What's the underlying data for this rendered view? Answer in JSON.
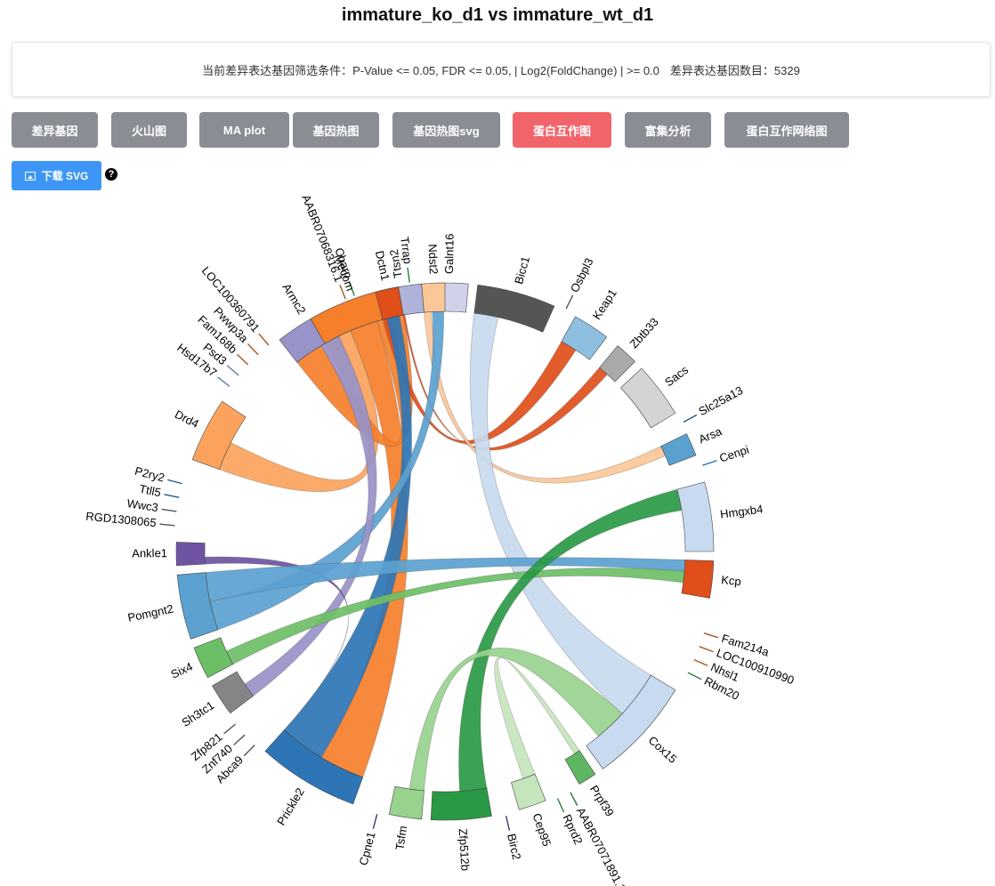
{
  "page_title": "immature_ko_d1 vs immature_wt_d1",
  "filter": {
    "condition": "当前差异表达基因筛选条件：P-Value <= 0.05, FDR <= 0.05, | Log2(FoldChange) | >= 0.0",
    "count_label": "差异表达基因数目：5329"
  },
  "tabs": [
    {
      "label": "差异基因",
      "active": false
    },
    {
      "label": "火山图",
      "active": false
    },
    {
      "label": "MA plot",
      "active": false
    },
    {
      "label": "基因热图",
      "active": false
    },
    {
      "label": "基因热图svg",
      "active": false
    },
    {
      "label": "蛋白互作图",
      "active": true
    },
    {
      "label": "富集分析",
      "active": false
    },
    {
      "label": "蛋白互作网络图",
      "active": false
    }
  ],
  "download_label": "下载 SVG",
  "help_icon": "question-circle-icon",
  "chord": {
    "genes": [
      {
        "name": "Ttsn2",
        "start": -14,
        "end": -5,
        "color": "#b0b3d9"
      },
      {
        "name": "Galnt16",
        "start": -3,
        "end": 5,
        "color": "#d1d2ea"
      },
      {
        "name": "Bicc1",
        "start": 7,
        "end": 24,
        "color": "#555555"
      },
      {
        "name": "Osbpl3",
        "start": 26,
        "end": 27,
        "color": "#555555",
        "tick": true
      },
      {
        "name": "Keap1",
        "start": 29,
        "end": 37,
        "color": "#8fbfe0"
      },
      {
        "name": "Zbtb33",
        "start": 40,
        "end": 45,
        "color": "#aaaaaa"
      },
      {
        "name": "Sacs",
        "start": 47,
        "end": 59,
        "color": "#d4d4d4"
      },
      {
        "name": "Slc25a13",
        "start": 61,
        "end": 62,
        "color": "#1f5a8f",
        "tick": true
      },
      {
        "name": "Arsa",
        "start": 64,
        "end": 69,
        "color": "#5ba1d0"
      },
      {
        "name": "Cenpi",
        "start": 71,
        "end": 72,
        "color": "#2e7bb8",
        "tick": true
      },
      {
        "name": "Hmgxb4",
        "start": 75,
        "end": 90,
        "color": "#c8daef"
      },
      {
        "name": "Kcp",
        "start": 92,
        "end": 100,
        "color": "#e04e1a"
      },
      {
        "name": "Fam214a",
        "start": 107,
        "end": 108,
        "color": "#a6561e",
        "tick": true
      },
      {
        "name": "LOC100910990",
        "start": 110,
        "end": 111,
        "color": "#a6561e",
        "tick": true
      },
      {
        "name": "Nhsl1",
        "start": 113,
        "end": 114,
        "color": "#a6561e",
        "tick": true
      },
      {
        "name": "Rbm20",
        "start": 116,
        "end": 117,
        "color": "#2c7d3a",
        "tick": true
      },
      {
        "name": "Cox15",
        "start": 121,
        "end": 144,
        "color": "#c8daef"
      },
      {
        "name": "Prpf39",
        "start": 146,
        "end": 150,
        "color": "#5fb662"
      },
      {
        "name": "AABR07071891.1",
        "start": 152,
        "end": 153,
        "color": "#2c7d3a",
        "tick": true
      },
      {
        "name": "Rprd2",
        "start": 155,
        "end": 156,
        "color": "#2c7d3a",
        "tick": true
      },
      {
        "name": "Cep95",
        "start": 158,
        "end": 164,
        "color": "#c5e5bd"
      },
      {
        "name": "Birc2",
        "start": 166,
        "end": 168,
        "color": "#3a3a6a",
        "tick": true
      },
      {
        "name": "Zfp512b",
        "start": 170,
        "end": 183,
        "color": "#2a9945"
      },
      {
        "name": "Tsfm",
        "start": 185,
        "end": 192,
        "color": "#98d38e"
      },
      {
        "name": "Cpne1",
        "start": 194,
        "end": 195,
        "color": "#3a3a6a",
        "tick": true
      },
      {
        "name": "Prickle2",
        "start": 200,
        "end": 222,
        "color": "#2e75b6"
      },
      {
        "name": "Abca9",
        "start": 224,
        "end": 225,
        "color": "#555555",
        "tick": true
      },
      {
        "name": "Znf740",
        "start": 227,
        "end": 228,
        "color": "#555555",
        "tick": true
      },
      {
        "name": "Zfp821",
        "start": 230,
        "end": 231,
        "color": "#555555",
        "tick": true
      },
      {
        "name": "Sh3tc1",
        "start": 233,
        "end": 240,
        "color": "#858585"
      },
      {
        "name": "Six4",
        "start": 242,
        "end": 249,
        "color": "#6cbf66"
      },
      {
        "name": "Pomgnt2",
        "start": 251,
        "end": 265,
        "color": "#5ba1d0"
      },
      {
        "name": "Ankle1",
        "start": 267,
        "end": 272,
        "color": "#6e54a3"
      },
      {
        "name": "RGD1308065",
        "start": 275,
        "end": 276,
        "color": "#555555",
        "tick": true
      },
      {
        "name": "Wwc3",
        "start": 278,
        "end": 279,
        "color": "#555555",
        "tick": true
      },
      {
        "name": "Ttll5",
        "start": 281,
        "end": 282,
        "color": "#1f5a8f",
        "tick": true
      },
      {
        "name": "P2ry2",
        "start": 284,
        "end": 285,
        "color": "#1f5a8f",
        "tick": true
      },
      {
        "name": "Drd4",
        "start": 290,
        "end": 304,
        "color": "#fba35d"
      },
      {
        "name": "Hsd17b7",
        "start": 307,
        "end": 308,
        "color": "#5c7da8",
        "tick": true
      },
      {
        "name": "Psd3",
        "start": 310,
        "end": 311,
        "color": "#5c7da8",
        "tick": true
      },
      {
        "name": "Fam168b",
        "start": 313,
        "end": 314,
        "color": "#a6561e",
        "tick": true
      },
      {
        "name": "Pwwp3a",
        "start": 316,
        "end": 317,
        "color": "#a6561e",
        "tick": true
      },
      {
        "name": "LOC100360791",
        "start": 319,
        "end": 320,
        "color": "#a6561e",
        "tick": true
      },
      {
        "name": "Armc2",
        "start": 322,
        "end": 336,
        "color": "#9893c8"
      },
      {
        "name": "AABR07068316.1",
        "start": 338,
        "end": 339,
        "color": "#a6561e",
        "tick": true
      },
      {
        "name": "Cbarp",
        "start": 340,
        "end": 341,
        "color": "#2c7d3a",
        "tick": true
      },
      {
        "name": "Mecom",
        "start": 330,
        "end": 350,
        "color": "#f57f2b",
        "hidden_dup": true
      },
      {
        "name": "Dctn1",
        "start": 345,
        "end": 350,
        "color": "#e04e1a"
      },
      {
        "name": "Trrap",
        "start": 352,
        "end": 353,
        "color": "#2c7d3a",
        "tick": true
      },
      {
        "name": "Ndst2",
        "start": 355,
        "end": 360,
        "color": "#fcc797"
      }
    ],
    "ribbons": [
      {
        "from": "Mecom",
        "to": "Drd4",
        "color": "#fba35d"
      },
      {
        "from": "Mecom",
        "to": "Prickle2",
        "color": "#f57f2b"
      },
      {
        "from": "Mecom",
        "to": "Armc2",
        "color": "#f57f2b"
      },
      {
        "from": "Mecom",
        "to": "Zbtb33",
        "color": "#e04e1a"
      },
      {
        "from": "Dctn1",
        "to": "Keap1",
        "color": "#e04e1a"
      },
      {
        "from": "Ndst2",
        "to": "Arsa",
        "color": "#fcc797"
      },
      {
        "from": "Ttsn2",
        "to": "Prickle2",
        "color": "#2e75b6"
      },
      {
        "from": "Galnt16",
        "to": "Pomgnt2",
        "color": "#5ba1d0"
      },
      {
        "from": "Bicc1",
        "to": "Cox15",
        "color": "#c8daef"
      },
      {
        "from": "Armc2",
        "to": "Sh3tc1",
        "color": "#9893c8"
      },
      {
        "from": "Ankle1",
        "to": "Prickle2",
        "color": "#6e54a3"
      },
      {
        "from": "Kcp",
        "to": "Pomgnt2",
        "color": "#5ba1d0"
      },
      {
        "from": "Kcp",
        "to": "Six4",
        "color": "#6cbf66"
      },
      {
        "from": "Hmgxb4",
        "to": "Zfp512b",
        "color": "#2a9945"
      },
      {
        "from": "Cox15",
        "to": "Tsfm",
        "color": "#98d38e"
      },
      {
        "from": "Prpf39",
        "to": "Cep95",
        "color": "#c5e5bd"
      }
    ]
  }
}
